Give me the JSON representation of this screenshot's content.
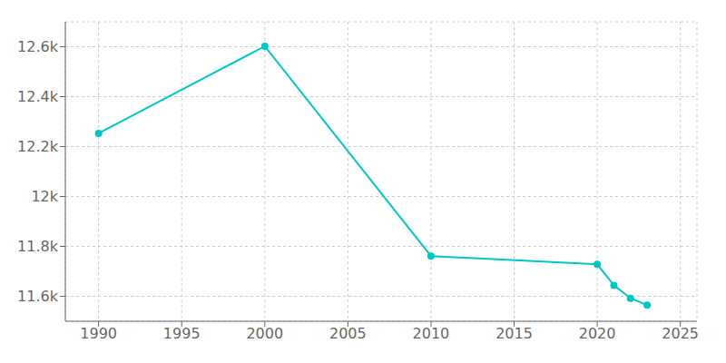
{
  "chart_data": {
    "type": "line",
    "x": [
      1990,
      2000,
      2010,
      2020,
      2021,
      2022,
      2023
    ],
    "values": [
      12253,
      12602,
      11761,
      11728,
      11644,
      11592,
      11565
    ],
    "color": "#00c7c7",
    "marker": "circle",
    "xlim": [
      1988,
      2026
    ],
    "xticks": [
      1990,
      1995,
      2000,
      2005,
      2010,
      2015,
      2020,
      2025
    ],
    "ylim": [
      11500,
      12700
    ],
    "yticks": [
      {
        "value": 11600,
        "label": "11.6k"
      },
      {
        "value": 11800,
        "label": "11.8k"
      },
      {
        "value": 12000,
        "label": "12k"
      },
      {
        "value": 12200,
        "label": "12.2k"
      },
      {
        "value": 12400,
        "label": "12.4k"
      },
      {
        "value": 12600,
        "label": "12.6k"
      }
    ],
    "grid": true
  }
}
